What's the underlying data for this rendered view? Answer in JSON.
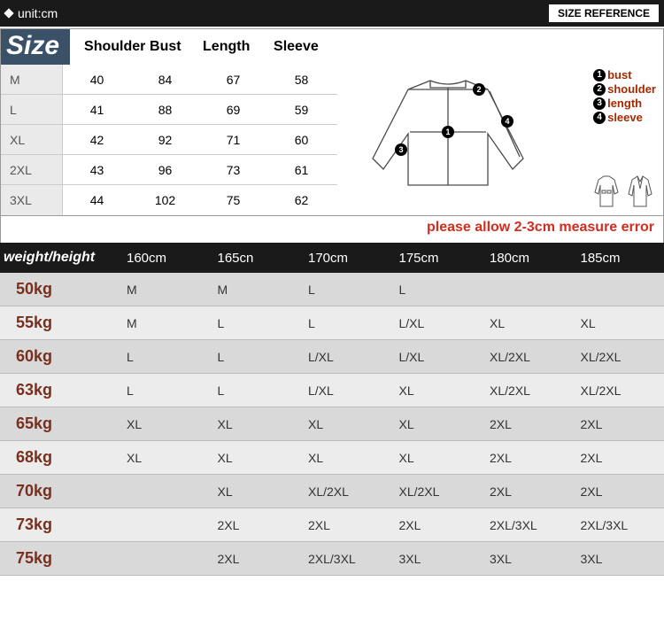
{
  "topbar": {
    "unit_label": "unit:cm",
    "sizeref_label": "SIZE REFERENCE"
  },
  "size_header": {
    "title": "Size",
    "cols": [
      "Shoulder",
      "Bust",
      "Length",
      "Sleeve"
    ]
  },
  "size_table": {
    "rows": [
      {
        "size": "M",
        "shoulder": "40",
        "bust": "84",
        "length": "67",
        "sleeve": "58"
      },
      {
        "size": "L",
        "shoulder": "41",
        "bust": "88",
        "length": "69",
        "sleeve": "59"
      },
      {
        "size": "XL",
        "shoulder": "42",
        "bust": "92",
        "length": "71",
        "sleeve": "60"
      },
      {
        "size": "2XL",
        "shoulder": "43",
        "bust": "96",
        "length": "73",
        "sleeve": "61"
      },
      {
        "size": "3XL",
        "shoulder": "44",
        "bust": "102",
        "length": "75",
        "sleeve": "62"
      }
    ]
  },
  "legend": {
    "items": [
      {
        "num": "1",
        "label": "bust"
      },
      {
        "num": "2",
        "label": "shoulder"
      },
      {
        "num": "3",
        "label": "length"
      },
      {
        "num": "4",
        "label": "sleeve"
      }
    ]
  },
  "diagram": {
    "stroke": "#4a4a4a",
    "stroke_width": 1.3,
    "circle_fill": "#000",
    "circle_text": "#fff"
  },
  "error_note": "please allow 2-3cm measure error",
  "wh_header": {
    "title": "weight/height",
    "cols": [
      "160cm",
      "165cn",
      "170cm",
      "175cm",
      "180cm",
      "185cm"
    ]
  },
  "wh_table": {
    "rows": [
      {
        "w": "50kg",
        "v": [
          "M",
          "M",
          "L",
          "L",
          "",
          ""
        ]
      },
      {
        "w": "55kg",
        "v": [
          "M",
          "L",
          "L",
          "L/XL",
          "XL",
          "XL"
        ]
      },
      {
        "w": "60kg",
        "v": [
          "L",
          "L",
          "L/XL",
          "L/XL",
          "XL/2XL",
          "XL/2XL"
        ]
      },
      {
        "w": "63kg",
        "v": [
          "L",
          "L",
          "L/XL",
          "XL",
          "XL/2XL",
          "XL/2XL"
        ]
      },
      {
        "w": "65kg",
        "v": [
          "XL",
          "XL",
          "XL",
          "XL",
          "2XL",
          "2XL"
        ]
      },
      {
        "w": "68kg",
        "v": [
          "XL",
          "XL",
          "XL",
          "XL",
          "2XL",
          "2XL"
        ]
      },
      {
        "w": "70kg",
        "v": [
          "",
          "XL",
          "XL/2XL",
          "XL/2XL",
          "2XL",
          "2XL"
        ]
      },
      {
        "w": "73kg",
        "v": [
          "",
          "2XL",
          "2XL",
          "2XL",
          "2XL/3XL",
          "2XL/3XL"
        ]
      },
      {
        "w": "75kg",
        "v": [
          "",
          "2XL",
          "2XL/3XL",
          "3XL",
          "3XL",
          "3XL"
        ]
      }
    ]
  },
  "colors": {
    "topbar_bg": "#1a1a1a",
    "size_title_bg": "#3b5168",
    "legend_text": "#a52a00",
    "error": "#d62b1f",
    "weight_text": "#7a2f1d",
    "row_alt_a": "#d9d9d9",
    "row_alt_b": "#ececec",
    "border": "#999"
  }
}
